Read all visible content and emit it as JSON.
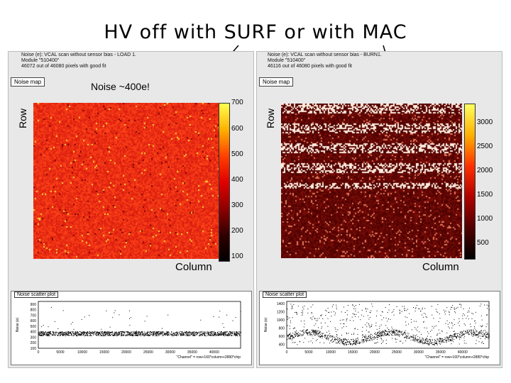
{
  "slide_title": "HV off with SURF or with MAC",
  "annotation": "Noise ~400e!",
  "colors": {
    "panel_bg": "#e8e8e8",
    "arrow": "#000000"
  },
  "chart_data": [
    {
      "type": "heatmap",
      "header": [
        "Noise (e): VCAL scan without sensor bias - LOAD 1.",
        "Module \"510400\"",
        "46072 out of 46080 pixels with good fit"
      ],
      "title": "Noise map",
      "xlabel": "Column",
      "ylabel": "Row",
      "colorbar_ticks": [
        "700",
        "600",
        "500",
        "400",
        "300",
        "200",
        "100"
      ],
      "zlim": [
        100,
        700
      ]
    },
    {
      "type": "scatter",
      "title": "Noise scatter plot",
      "xlabel": "\"Channel\" = row+160*column+2880*chip",
      "ylabel": "Noise (e)",
      "xticks": [
        "0",
        "5000",
        "10000",
        "15000",
        "20000",
        "25000",
        "30000",
        "35000",
        "40000"
      ],
      "yticks": [
        "900",
        "800",
        "700",
        "600",
        "500",
        "400",
        "300",
        "200",
        "100"
      ],
      "ylim": [
        100,
        950
      ]
    },
    {
      "type": "heatmap",
      "header": [
        "Noise (e): VCAL scan without sensor bias - BURN1.",
        "Module \"510400\"",
        "46116 out of 46080 pixels with good fit"
      ],
      "title": "Noise map",
      "xlabel": "Column",
      "ylabel": "Row",
      "colorbar_ticks": [
        "3000",
        "2500",
        "2000",
        "1500",
        "1000",
        "500"
      ],
      "zlim": [
        0,
        3300
      ]
    },
    {
      "type": "scatter",
      "title": "Noise scatter plot",
      "xlabel": "\"Channel\" = row+160*column+2880*chip",
      "ylabel": "Noise (e)",
      "xticks": [
        "0",
        "5000",
        "10000",
        "15000",
        "20000",
        "25000",
        "30000",
        "35000",
        "40000"
      ],
      "yticks": [
        "1400",
        "1200",
        "1000",
        "800",
        "600",
        "400"
      ],
      "ylim": [
        300,
        1450
      ]
    }
  ]
}
